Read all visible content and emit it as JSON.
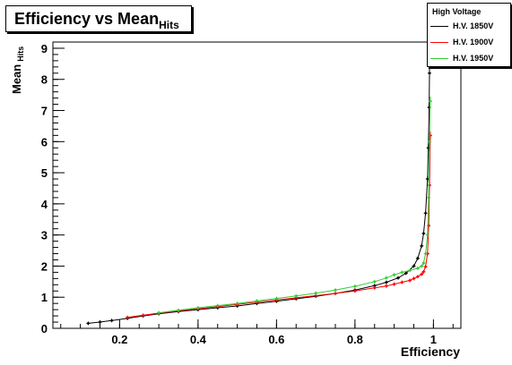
{
  "title": {
    "main": "Efficiency vs Mean",
    "sub": "Hits"
  },
  "axes": {
    "x": {
      "label": "Efficiency"
    },
    "y": {
      "label_main": "Mean",
      "label_sub": "Hits"
    }
  },
  "legend": {
    "title": "High Voltage",
    "entries": [
      {
        "label": "H.V. 1850V",
        "color": "#000000"
      },
      {
        "label": "H.V. 1900V",
        "color": "#ff0000"
      },
      {
        "label": "H.V. 1950V",
        "color": "#33cc33"
      }
    ]
  },
  "chart_data": {
    "type": "line",
    "title": "Efficiency vs Mean Hits",
    "xlabel": "Efficiency",
    "ylabel": "Mean Hits",
    "xlim": [
      0.03,
      1.07
    ],
    "ylim": [
      0,
      9.2
    ],
    "xticks": [
      0.2,
      0.4,
      0.6,
      0.8,
      1
    ],
    "xtick_labels": [
      "0.2",
      "0.4",
      "0.6",
      "0.8",
      "1"
    ],
    "yticks": [
      0,
      1,
      2,
      3,
      4,
      5,
      6,
      7,
      8,
      9
    ],
    "ytick_labels": [
      "0",
      "1",
      "2",
      "3",
      "4",
      "5",
      "6",
      "7",
      "8",
      "9"
    ],
    "legend_position": "top-right",
    "grid": false,
    "series": [
      {
        "name": "H.V. 1850V",
        "color": "#000000",
        "points": [
          [
            0.12,
            0.16
          ],
          [
            0.15,
            0.2
          ],
          [
            0.18,
            0.25
          ],
          [
            0.22,
            0.32
          ],
          [
            0.26,
            0.4
          ],
          [
            0.3,
            0.47
          ],
          [
            0.35,
            0.54
          ],
          [
            0.4,
            0.6
          ],
          [
            0.45,
            0.66
          ],
          [
            0.5,
            0.72
          ],
          [
            0.55,
            0.8
          ],
          [
            0.6,
            0.87
          ],
          [
            0.65,
            0.95
          ],
          [
            0.7,
            1.03
          ],
          [
            0.75,
            1.12
          ],
          [
            0.8,
            1.23
          ],
          [
            0.85,
            1.37
          ],
          [
            0.88,
            1.48
          ],
          [
            0.91,
            1.62
          ],
          [
            0.93,
            1.77
          ],
          [
            0.95,
            2.0
          ],
          [
            0.96,
            2.25
          ],
          [
            0.97,
            2.65
          ],
          [
            0.975,
            3.05
          ],
          [
            0.98,
            3.7
          ],
          [
            0.985,
            4.8
          ],
          [
            0.987,
            5.8
          ],
          [
            0.989,
            7.1
          ],
          [
            0.99,
            8.2
          ]
        ]
      },
      {
        "name": "H.V. 1900V",
        "color": "#ff0000",
        "points": [
          [
            0.22,
            0.35
          ],
          [
            0.26,
            0.42
          ],
          [
            0.3,
            0.49
          ],
          [
            0.35,
            0.56
          ],
          [
            0.4,
            0.63
          ],
          [
            0.45,
            0.7
          ],
          [
            0.5,
            0.77
          ],
          [
            0.55,
            0.84
          ],
          [
            0.6,
            0.91
          ],
          [
            0.65,
            0.98
          ],
          [
            0.7,
            1.05
          ],
          [
            0.75,
            1.12
          ],
          [
            0.8,
            1.2
          ],
          [
            0.85,
            1.3
          ],
          [
            0.88,
            1.36
          ],
          [
            0.9,
            1.42
          ],
          [
            0.92,
            1.48
          ],
          [
            0.94,
            1.54
          ],
          [
            0.95,
            1.6
          ],
          [
            0.96,
            1.66
          ],
          [
            0.97,
            1.74
          ],
          [
            0.975,
            1.82
          ],
          [
            0.98,
            1.98
          ],
          [
            0.985,
            2.4
          ],
          [
            0.988,
            3.3
          ],
          [
            0.99,
            4.6
          ],
          [
            0.992,
            6.2
          ]
        ]
      },
      {
        "name": "H.V. 1950V",
        "color": "#33cc33",
        "points": [
          [
            0.3,
            0.5
          ],
          [
            0.35,
            0.58
          ],
          [
            0.4,
            0.66
          ],
          [
            0.45,
            0.73
          ],
          [
            0.5,
            0.8
          ],
          [
            0.55,
            0.88
          ],
          [
            0.6,
            0.96
          ],
          [
            0.65,
            1.04
          ],
          [
            0.7,
            1.13
          ],
          [
            0.75,
            1.23
          ],
          [
            0.8,
            1.35
          ],
          [
            0.85,
            1.5
          ],
          [
            0.88,
            1.62
          ],
          [
            0.9,
            1.72
          ],
          [
            0.92,
            1.8
          ],
          [
            0.94,
            1.86
          ],
          [
            0.96,
            1.93
          ],
          [
            0.97,
            2.0
          ],
          [
            0.975,
            2.1
          ],
          [
            0.98,
            2.4
          ],
          [
            0.985,
            3.0
          ],
          [
            0.988,
            4.2
          ],
          [
            0.99,
            6.0
          ],
          [
            0.992,
            7.3
          ]
        ]
      }
    ]
  }
}
